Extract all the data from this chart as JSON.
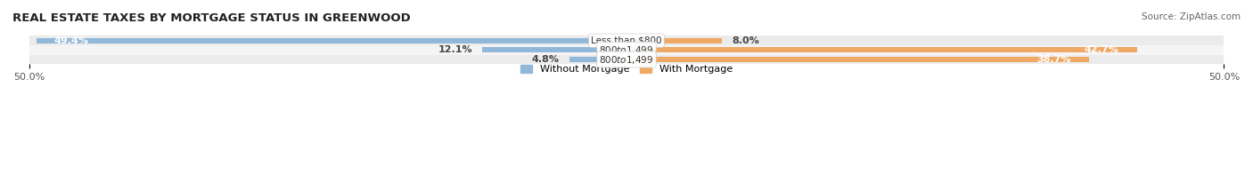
{
  "title": "REAL ESTATE TAXES BY MORTGAGE STATUS IN GREENWOOD",
  "source": "Source: ZipAtlas.com",
  "rows": [
    {
      "label": "Less than $800",
      "without_mortgage": 49.4,
      "with_mortgage": 8.0
    },
    {
      "label": "$800 to $1,499",
      "without_mortgage": 12.1,
      "with_mortgage": 42.7
    },
    {
      "label": "$800 to $1,499",
      "without_mortgage": 4.8,
      "with_mortgage": 38.7
    }
  ],
  "xlim": [
    -50.0,
    50.0
  ],
  "color_without": "#92b8d9",
  "color_with": "#f0a965",
  "bar_height": 0.55,
  "title_fontsize": 9.5,
  "label_fontsize": 8,
  "tick_fontsize": 8
}
